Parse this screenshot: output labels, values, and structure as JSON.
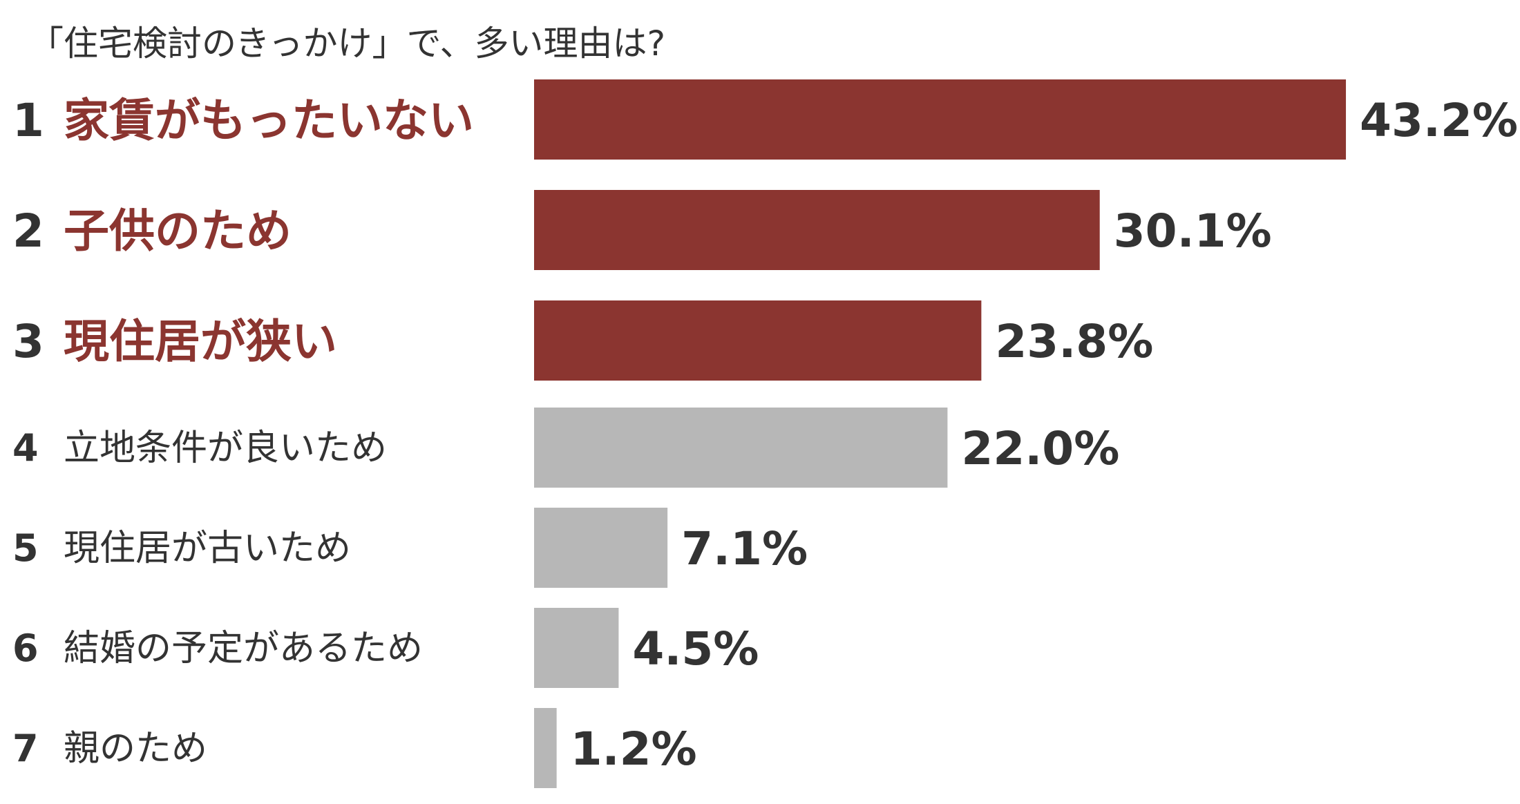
{
  "chart_data": {
    "type": "bar",
    "orientation": "horizontal",
    "title": "「住宅検討のきっかけ」で、多い理由は?",
    "ranks": [
      "1",
      "2",
      "3",
      "4",
      "5",
      "6",
      "7"
    ],
    "categories": [
      "家賃がもったいない",
      "子供のため",
      "現住居が狭い",
      "立地条件が良いため",
      "現住居が古いため",
      "結婚の予定があるため",
      "親のため"
    ],
    "values": [
      43.2,
      30.1,
      23.8,
      22.0,
      7.1,
      4.5,
      1.2
    ],
    "value_labels": [
      "43.2%",
      "30.1%",
      "23.8%",
      "22.0%",
      "7.1%",
      "4.5%",
      "1.2%"
    ],
    "unit": "%",
    "xlim": [
      0,
      45
    ],
    "highlight_count": 3,
    "colors": {
      "highlight_bar": "#8b3530",
      "highlight_label": "#8b3530",
      "normal_bar": "#b7b7b7",
      "text": "#333333"
    },
    "grid": false,
    "legend": "none"
  }
}
